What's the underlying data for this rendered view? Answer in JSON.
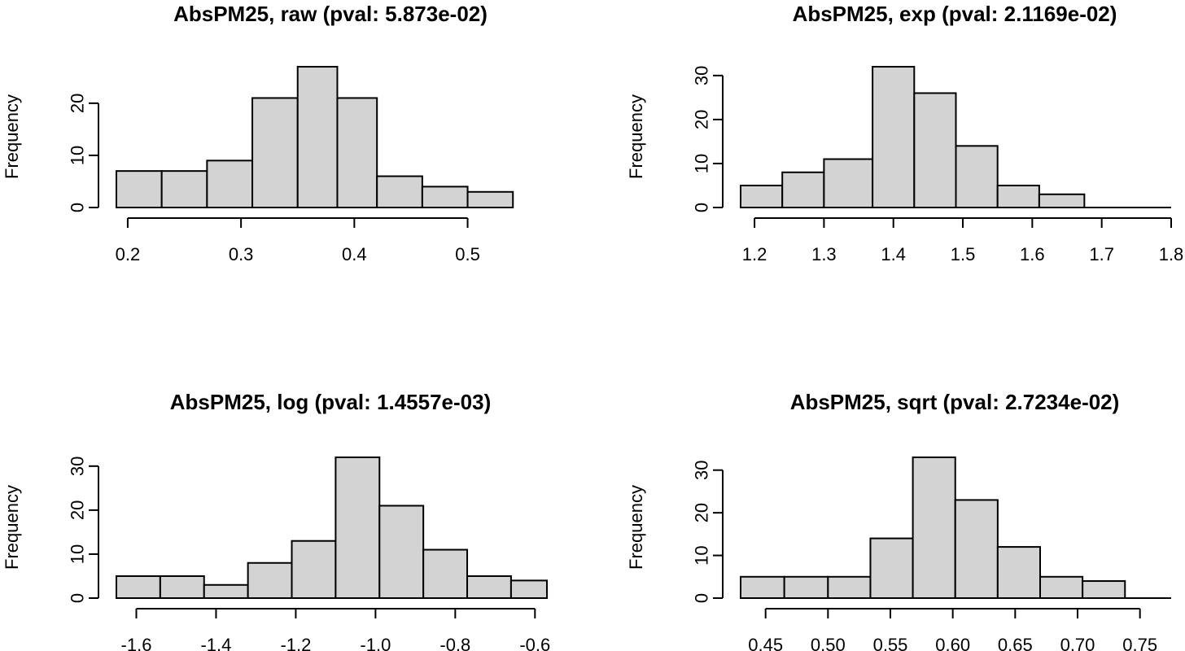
{
  "chart_data": [
    {
      "type": "bar",
      "title": "AbsPM25, raw (pval: 5.873e-02)",
      "ylabel": "Frequency",
      "xlabel": "",
      "bins": [
        [
          0.19,
          0.23
        ],
        [
          0.23,
          0.27
        ],
        [
          0.27,
          0.31
        ],
        [
          0.31,
          0.35
        ],
        [
          0.35,
          0.385
        ],
        [
          0.385,
          0.42
        ],
        [
          0.42,
          0.46
        ],
        [
          0.46,
          0.5
        ],
        [
          0.5,
          0.54
        ]
      ],
      "values": [
        7,
        7,
        9,
        21,
        27,
        21,
        6,
        4,
        3
      ],
      "xlim": [
        0.19,
        0.57
      ],
      "xticks": [
        0.2,
        0.3,
        0.4,
        0.5
      ],
      "xtick_labels": [
        "0.2",
        "0.3",
        "0.4",
        "0.5"
      ],
      "ylim": [
        0,
        27
      ],
      "yticks": [
        0,
        10,
        20
      ],
      "ytick_labels": [
        "0",
        "10",
        "20"
      ]
    },
    {
      "type": "bar",
      "title": "AbsPM25, exp (pval: 2.1169e-02)",
      "ylabel": "Frequency",
      "xlabel": "",
      "bins": [
        [
          1.18,
          1.24
        ],
        [
          1.24,
          1.3
        ],
        [
          1.3,
          1.37
        ],
        [
          1.37,
          1.43
        ],
        [
          1.43,
          1.49
        ],
        [
          1.49,
          1.55
        ],
        [
          1.55,
          1.61
        ],
        [
          1.61,
          1.675
        ],
        [
          1.675,
          1.8
        ]
      ],
      "values": [
        5,
        8,
        11,
        32,
        26,
        14,
        5,
        3,
        0
      ],
      "xlim": [
        1.18,
        1.8
      ],
      "xticks": [
        1.2,
        1.3,
        1.4,
        1.5,
        1.6,
        1.7,
        1.8
      ],
      "xtick_labels": [
        "1.2",
        "1.3",
        "1.4",
        "1.5",
        "1.6",
        "1.7",
        "1.8"
      ],
      "ylim": [
        0,
        32
      ],
      "yticks": [
        0,
        10,
        20,
        30
      ],
      "ytick_labels": [
        "0",
        "10",
        "20",
        "30"
      ]
    },
    {
      "type": "bar",
      "title": "AbsPM25, log (pval: 1.4557e-03)",
      "ylabel": "Frequency",
      "xlabel": "",
      "bins": [
        [
          -1.65,
          -1.54
        ],
        [
          -1.54,
          -1.43
        ],
        [
          -1.43,
          -1.32
        ],
        [
          -1.32,
          -1.21
        ],
        [
          -1.21,
          -1.1
        ],
        [
          -1.1,
          -0.99
        ],
        [
          -0.99,
          -0.88
        ],
        [
          -0.88,
          -0.77
        ],
        [
          -0.77,
          -0.66
        ],
        [
          -0.66,
          -0.57
        ]
      ],
      "values": [
        5,
        5,
        3,
        8,
        13,
        32,
        21,
        11,
        5,
        4
      ],
      "xlim": [
        -1.65,
        -0.57
      ],
      "xticks": [
        -1.6,
        -1.4,
        -1.2,
        -1.0,
        -0.8,
        -0.6
      ],
      "xtick_labels": [
        "-1.6",
        "-1.4",
        "-1.2",
        "-1.0",
        "-0.8",
        "-0.6"
      ],
      "ylim": [
        0,
        32
      ],
      "yticks": [
        0,
        10,
        20,
        30
      ],
      "ytick_labels": [
        "0",
        "10",
        "20",
        "30"
      ]
    },
    {
      "type": "bar",
      "title": "AbsPM25, sqrt (pval: 2.7234e-02)",
      "ylabel": "Frequency",
      "xlabel": "",
      "bins": [
        [
          0.43,
          0.465
        ],
        [
          0.465,
          0.5
        ],
        [
          0.5,
          0.534
        ],
        [
          0.534,
          0.568
        ],
        [
          0.568,
          0.602
        ],
        [
          0.602,
          0.636
        ],
        [
          0.636,
          0.67
        ],
        [
          0.67,
          0.704
        ],
        [
          0.704,
          0.738
        ],
        [
          0.738,
          0.775
        ]
      ],
      "values": [
        5,
        5,
        5,
        14,
        33,
        23,
        12,
        5,
        4,
        0
      ],
      "xlim": [
        0.43,
        0.775
      ],
      "xticks": [
        0.45,
        0.5,
        0.55,
        0.6,
        0.65,
        0.7,
        0.75
      ],
      "xtick_labels": [
        "0.45",
        "0.50",
        "0.55",
        "0.60",
        "0.65",
        "0.70",
        "0.75"
      ],
      "ylim": [
        0,
        33
      ],
      "yticks": [
        0,
        10,
        20,
        30
      ],
      "ytick_labels": [
        "0",
        "10",
        "20",
        "30"
      ]
    }
  ],
  "colors": {
    "bar_fill": "#d3d3d3",
    "bar_stroke": "#000000",
    "background": "#ffffff"
  }
}
